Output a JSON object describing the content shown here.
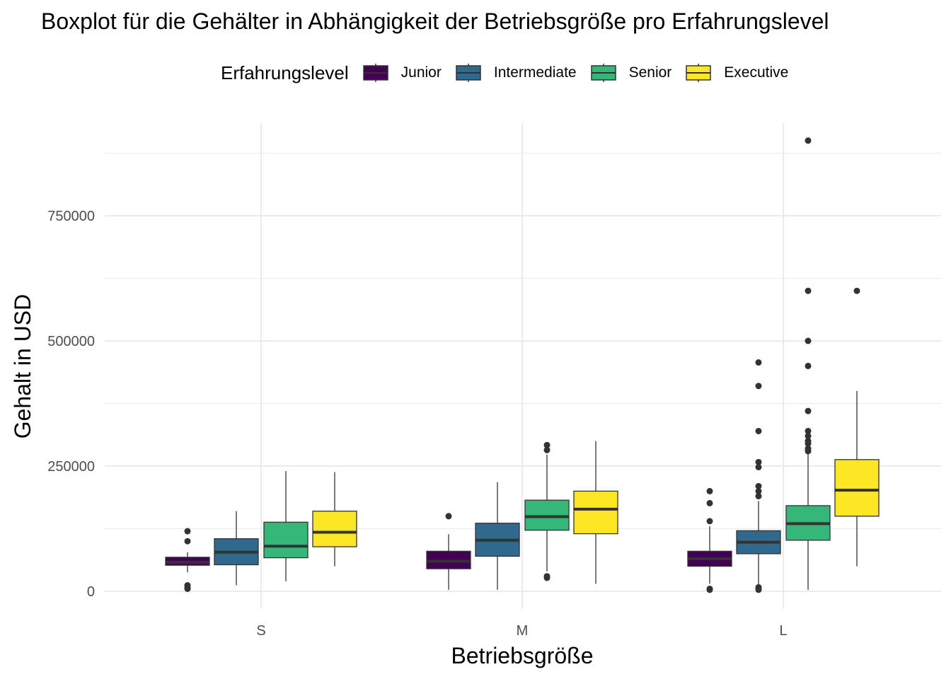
{
  "chart_data": {
    "type": "boxplot",
    "title": "Boxplot für die Gehälter in Abhängigkeit der Betriebsgröße pro Erfahrungslevel",
    "xlabel": "Betriebsgröße",
    "ylabel": "Gehalt in USD",
    "ylim": [
      -35000,
      935000
    ],
    "yticks": [
      0,
      250000,
      500000,
      750000
    ],
    "ytick_labels": [
      "0",
      "250000",
      "500000",
      "750000"
    ],
    "categories": [
      "S",
      "M",
      "L"
    ],
    "grid": true,
    "legend": {
      "title": "Erfahrungslevel",
      "position": "top",
      "entries": [
        "Junior",
        "Intermediate",
        "Senior",
        "Executive"
      ]
    },
    "series": [
      {
        "name": "Junior",
        "color": "#440154",
        "boxes": [
          {
            "min": 38000,
            "q1": 52000,
            "median": 58000,
            "q3": 68000,
            "max": 78000,
            "outliers": [
              120000,
              100000,
              12000,
              8000,
              5000
            ]
          },
          {
            "min": 3000,
            "q1": 45000,
            "median": 60000,
            "q3": 80000,
            "max": 114000,
            "outliers": [
              150000
            ]
          },
          {
            "min": 15000,
            "q1": 50000,
            "median": 65000,
            "q3": 80000,
            "max": 130000,
            "outliers": [
              200000,
              176000,
              140000,
              5000,
              3000
            ]
          }
        ]
      },
      {
        "name": "Intermediate",
        "color": "#31688E",
        "boxes": [
          {
            "min": 12000,
            "q1": 53000,
            "median": 78000,
            "q3": 105000,
            "max": 160000,
            "outliers": []
          },
          {
            "min": 3000,
            "q1": 70000,
            "median": 102000,
            "q3": 136000,
            "max": 218000,
            "outliers": []
          },
          {
            "min": 10000,
            "q1": 75000,
            "median": 98000,
            "q3": 121000,
            "max": 180000,
            "outliers": [
              457000,
              410000,
              320000,
              258000,
              248000,
              210000,
              200000,
              190000,
              8000,
              5000,
              3000
            ]
          }
        ]
      },
      {
        "name": "Senior",
        "color": "#35B779",
        "boxes": [
          {
            "min": 20000,
            "q1": 67000,
            "median": 90000,
            "q3": 138000,
            "max": 240000,
            "outliers": []
          },
          {
            "min": 40000,
            "q1": 122000,
            "median": 149000,
            "q3": 182000,
            "max": 273000,
            "outliers": [
              292000,
              282000,
              30000,
              27000
            ]
          },
          {
            "min": 3000,
            "q1": 102000,
            "median": 135000,
            "q3": 171000,
            "max": 275000,
            "outliers": [
              900000,
              600000,
              500000,
              450000,
              360000,
              320000,
              310000,
              300000,
              295000,
              285000,
              280000
            ]
          }
        ]
      },
      {
        "name": "Executive",
        "color": "#FDE725",
        "boxes": [
          {
            "min": 50000,
            "q1": 89000,
            "median": 118000,
            "q3": 160000,
            "max": 238000,
            "outliers": []
          },
          {
            "min": 15000,
            "q1": 115000,
            "median": 164000,
            "q3": 200000,
            "max": 300000,
            "outliers": []
          },
          {
            "min": 50000,
            "q1": 150000,
            "median": 202000,
            "q3": 263000,
            "max": 400000,
            "outliers": [
              600000
            ]
          }
        ]
      }
    ]
  }
}
